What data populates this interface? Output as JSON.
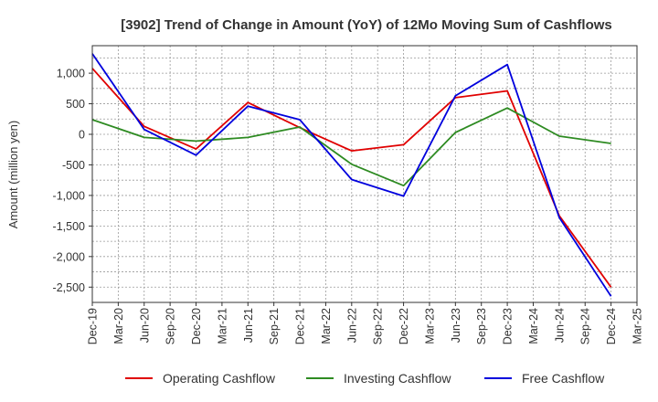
{
  "chart_data": {
    "type": "line",
    "title": "[3902]  Trend of Change in Amount (YoY) of 12Mo Moving Sum of Cashflows",
    "xlabel": "",
    "ylabel": "Amount (million yen)",
    "ylim": [
      -2750,
      1450
    ],
    "yticks": [
      1000,
      500,
      0,
      -500,
      -1000,
      -1500,
      -2000,
      -2500
    ],
    "ytick_labels": [
      "1,000",
      "500",
      "0",
      "-500",
      "-1,000",
      "-1,500",
      "-2,000",
      "-2,500"
    ],
    "categories": [
      "Dec-19",
      "Mar-20",
      "Jun-20",
      "Sep-20",
      "Dec-20",
      "Mar-21",
      "Jun-21",
      "Sep-21",
      "Dec-21",
      "Mar-22",
      "Jun-22",
      "Sep-22",
      "Dec-22",
      "Mar-23",
      "Jun-23",
      "Sep-23",
      "Dec-23",
      "Mar-24",
      "Jun-24",
      "Sep-24",
      "Dec-24",
      "Mar-25"
    ],
    "grid": true,
    "legend_position": "bottom",
    "series": [
      {
        "name": "Operating Cashflow",
        "color": "#e00000",
        "x": [
          "Dec-19",
          "Jun-20",
          "Dec-20",
          "Jun-21",
          "Dec-21",
          "Jun-22",
          "Dec-22",
          "Jun-23",
          "Dec-23",
          "Jun-24",
          "Dec-24"
        ],
        "values": [
          1080,
          130,
          -240,
          520,
          110,
          -270,
          -170,
          600,
          710,
          -1330,
          -2500
        ]
      },
      {
        "name": "Investing Cashflow",
        "color": "#2e8b22",
        "x": [
          "Dec-19",
          "Jun-20",
          "Dec-20",
          "Jun-21",
          "Dec-21",
          "Jun-22",
          "Dec-22",
          "Jun-23",
          "Dec-23",
          "Jun-24",
          "Dec-24"
        ],
        "values": [
          240,
          -50,
          -110,
          -50,
          120,
          -490,
          -840,
          30,
          430,
          -30,
          -150
        ]
      },
      {
        "name": "Free Cashflow",
        "color": "#0000dd",
        "x": [
          "Dec-19",
          "Jun-20",
          "Dec-20",
          "Jun-21",
          "Dec-21",
          "Jun-22",
          "Dec-22",
          "Jun-23",
          "Dec-23",
          "Jun-24",
          "Dec-24"
        ],
        "values": [
          1320,
          80,
          -340,
          460,
          240,
          -740,
          -1010,
          630,
          1140,
          -1360,
          -2650
        ]
      }
    ]
  }
}
